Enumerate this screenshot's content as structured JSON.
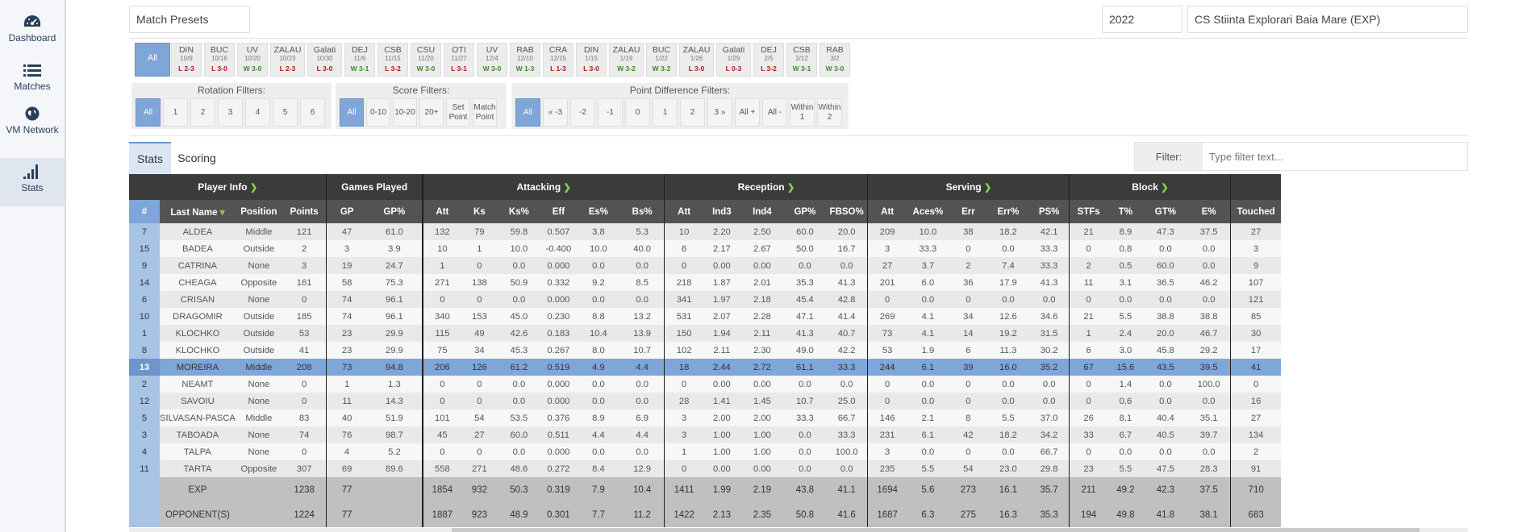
{
  "sidebar": {
    "items": [
      {
        "label": "Dashboard",
        "icon": "dashboard-icon"
      },
      {
        "label": "Matches",
        "icon": "list-icon"
      },
      {
        "label": "VM Network",
        "icon": "globe-icon"
      },
      {
        "label": "Stats",
        "icon": "signal-bars-icon"
      }
    ]
  },
  "top": {
    "presets": "Match Presets",
    "season": "2022",
    "team": "CS Stiinta Explorari Baia Mare (EXP)"
  },
  "matches": {
    "all_label": "All",
    "items": [
      {
        "opp": "DIN",
        "date": "10/9",
        "res": "L 2-3",
        "w": false
      },
      {
        "opp": "BUC",
        "date": "10/16",
        "res": "L 3-0",
        "w": false
      },
      {
        "opp": "UV",
        "date": "10/20",
        "res": "W 3-0",
        "w": true
      },
      {
        "opp": "ZALAU",
        "date": "10/23",
        "res": "L 2-3",
        "w": false
      },
      {
        "opp": "Galati",
        "date": "10/30",
        "res": "L 3-0",
        "w": false
      },
      {
        "opp": "DEJ",
        "date": "11/6",
        "res": "W 3-1",
        "w": true
      },
      {
        "opp": "CSB",
        "date": "11/15",
        "res": "L 3-2",
        "w": false
      },
      {
        "opp": "CSU",
        "date": "11/20",
        "res": "W 3-0",
        "w": true
      },
      {
        "opp": "OTI",
        "date": "11/27",
        "res": "L 3-1",
        "w": false
      },
      {
        "opp": "UV",
        "date": "12/4",
        "res": "W 3-0",
        "w": true
      },
      {
        "opp": "RAB",
        "date": "12/10",
        "res": "W 1-3",
        "w": true
      },
      {
        "opp": "CRA",
        "date": "12/15",
        "res": "L 1-3",
        "w": false
      },
      {
        "opp": "DIN",
        "date": "1/15",
        "res": "L 3-0",
        "w": false
      },
      {
        "opp": "ZALAU",
        "date": "1/19",
        "res": "W 3-2",
        "w": true
      },
      {
        "opp": "BUC",
        "date": "1/22",
        "res": "W 3-2",
        "w": true
      },
      {
        "opp": "ZALAU",
        "date": "1/26",
        "res": "L 3-0",
        "w": false
      },
      {
        "opp": "Galati",
        "date": "1/29",
        "res": "L 0-3",
        "w": false
      },
      {
        "opp": "DEJ",
        "date": "2/5",
        "res": "L 3-2",
        "w": false
      },
      {
        "opp": "CSB",
        "date": "2/12",
        "res": "W 3-1",
        "w": true
      },
      {
        "opp": "RAB",
        "date": "3/2",
        "res": "W 3-0",
        "w": true
      }
    ]
  },
  "filters": {
    "rotation": {
      "title": "Rotation Filters:",
      "buttons": [
        "All",
        "1",
        "2",
        "3",
        "4",
        "5",
        "6"
      ]
    },
    "score": {
      "title": "Score Filters:",
      "buttons": [
        "All",
        "0-10",
        "10-20",
        "20+",
        "Set Point",
        "Match Point"
      ]
    },
    "pointdiff": {
      "title": "Point Difference Filters:",
      "buttons": [
        "All",
        "« -3",
        "-2",
        "-1",
        "0",
        "1",
        "2",
        "3 »",
        "All +",
        "All -",
        "Within 1",
        "Within 2"
      ]
    }
  },
  "tabs": {
    "stats": "Stats",
    "scoring": "Scoring"
  },
  "filter": {
    "label": "Filter:",
    "placeholder": "Type filter text..."
  },
  "table": {
    "groups": {
      "player_info": "Player Info",
      "games_played": "Games Played",
      "attacking": "Attacking",
      "reception": "Reception",
      "serving": "Serving",
      "block": "Block"
    },
    "columns": [
      "#",
      "Last Name",
      "Position",
      "Points",
      "GP",
      "GP%",
      "Att",
      "Ks",
      "Ks%",
      "Eff",
      "Es%",
      "Bs%",
      "Att",
      "Ind3",
      "Ind4",
      "GP%",
      "FBSO%",
      "Att",
      "Aces%",
      "Err",
      "Err%",
      "PS%",
      "STFs",
      "T%",
      "GT%",
      "E%",
      "Touched"
    ],
    "rows": [
      [
        "7",
        "ALDEA",
        "Middle",
        "121",
        "47",
        "61.0",
        "132",
        "79",
        "59.8",
        "0.507",
        "3.8",
        "5.3",
        "10",
        "2.20",
        "2.50",
        "60.0",
        "20.0",
        "209",
        "10.0",
        "38",
        "18.2",
        "42.1",
        "21",
        "8.9",
        "47.3",
        "37.5",
        "27"
      ],
      [
        "15",
        "BADEA",
        "Outside",
        "2",
        "3",
        "3.9",
        "10",
        "1",
        "10.0",
        "-0.400",
        "10.0",
        "40.0",
        "6",
        "2.17",
        "2.67",
        "50.0",
        "16.7",
        "3",
        "33.3",
        "0",
        "0.0",
        "33.3",
        "0",
        "0.8",
        "0.0",
        "0.0",
        "3"
      ],
      [
        "9",
        "CATRINA",
        "None",
        "3",
        "19",
        "24.7",
        "1",
        "0",
        "0.0",
        "0.000",
        "0.0",
        "0.0",
        "0",
        "0.00",
        "0.00",
        "0.0",
        "0.0",
        "27",
        "3.7",
        "2",
        "7.4",
        "33.3",
        "2",
        "0.5",
        "60.0",
        "0.0",
        "9"
      ],
      [
        "14",
        "CHEAGA",
        "Opposite",
        "161",
        "58",
        "75.3",
        "271",
        "138",
        "50.9",
        "0.332",
        "9.2",
        "8.5",
        "218",
        "1.87",
        "2.01",
        "35.3",
        "41.3",
        "201",
        "6.0",
        "36",
        "17.9",
        "41.3",
        "11",
        "3.1",
        "36.5",
        "46.2",
        "107"
      ],
      [
        "6",
        "CRISAN",
        "None",
        "0",
        "74",
        "96.1",
        "0",
        "0",
        "0.0",
        "0.000",
        "0.0",
        "0.0",
        "341",
        "1.97",
        "2.18",
        "45.4",
        "42.8",
        "0",
        "0.0",
        "0",
        "0.0",
        "0.0",
        "0",
        "0.0",
        "0.0",
        "0.0",
        "121"
      ],
      [
        "10",
        "DRAGOMIR",
        "Outside",
        "185",
        "74",
        "96.1",
        "340",
        "153",
        "45.0",
        "0.230",
        "8.8",
        "13.2",
        "531",
        "2.07",
        "2.28",
        "47.1",
        "41.4",
        "269",
        "4.1",
        "34",
        "12.6",
        "34.6",
        "21",
        "5.5",
        "38.8",
        "38.8",
        "85"
      ],
      [
        "1",
        "KLOCHKO",
        "Outside",
        "53",
        "23",
        "29.9",
        "115",
        "49",
        "42.6",
        "0.183",
        "10.4",
        "13.9",
        "150",
        "1.94",
        "2.11",
        "41.3",
        "40.7",
        "73",
        "4.1",
        "14",
        "19.2",
        "31.5",
        "1",
        "2.4",
        "20.0",
        "46.7",
        "30"
      ],
      [
        "8",
        "KLOCHKO",
        "Outside",
        "41",
        "23",
        "29.9",
        "75",
        "34",
        "45.3",
        "0.267",
        "8.0",
        "10.7",
        "102",
        "2.11",
        "2.30",
        "49.0",
        "42.2",
        "53",
        "1.9",
        "6",
        "11.3",
        "30.2",
        "6",
        "3.0",
        "45.8",
        "29.2",
        "17"
      ],
      [
        "13",
        "MOREIRA",
        "Middle",
        "208",
        "73",
        "94.8",
        "206",
        "126",
        "61.2",
        "0.519",
        "4.9",
        "4.4",
        "18",
        "2.44",
        "2.72",
        "61.1",
        "33.3",
        "244",
        "6.1",
        "39",
        "16.0",
        "35.2",
        "67",
        "15.6",
        "43.5",
        "39.5",
        "41"
      ],
      [
        "2",
        "NEAMT",
        "None",
        "0",
        "1",
        "1.3",
        "0",
        "0",
        "0.0",
        "0.000",
        "0.0",
        "0.0",
        "0",
        "0.00",
        "0.00",
        "0.0",
        "0.0",
        "0",
        "0.0",
        "0",
        "0.0",
        "0.0",
        "0",
        "1.4",
        "0.0",
        "100.0",
        "0"
      ],
      [
        "12",
        "SAVOIU",
        "None",
        "0",
        "11",
        "14.3",
        "0",
        "0",
        "0.0",
        "0.000",
        "0.0",
        "0.0",
        "28",
        "1.41",
        "1.45",
        "10.7",
        "25.0",
        "0",
        "0.0",
        "0",
        "0.0",
        "0.0",
        "0",
        "0.6",
        "0.0",
        "0.0",
        "16"
      ],
      [
        "5",
        "SILVASAN-PASCA",
        "Middle",
        "83",
        "40",
        "51.9",
        "101",
        "54",
        "53.5",
        "0.376",
        "8.9",
        "6.9",
        "3",
        "2.00",
        "2.00",
        "33.3",
        "66.7",
        "146",
        "2.1",
        "8",
        "5.5",
        "37.0",
        "26",
        "8.1",
        "40.4",
        "35.1",
        "27"
      ],
      [
        "3",
        "TABOADA",
        "None",
        "74",
        "76",
        "98.7",
        "45",
        "27",
        "60.0",
        "0.511",
        "4.4",
        "4.4",
        "3",
        "1.00",
        "1.00",
        "0.0",
        "33.3",
        "231",
        "6.1",
        "42",
        "18.2",
        "34.2",
        "33",
        "6.7",
        "40.5",
        "39.7",
        "134"
      ],
      [
        "4",
        "TALPA",
        "None",
        "0",
        "4",
        "5.2",
        "0",
        "0",
        "0.0",
        "0.000",
        "0.0",
        "0.0",
        "1",
        "1.00",
        "1.00",
        "0.0",
        "100.0",
        "3",
        "0.0",
        "0",
        "0.0",
        "66.7",
        "0",
        "0.0",
        "0.0",
        "0.0",
        "2"
      ],
      [
        "11",
        "TARTA",
        "Opposite",
        "307",
        "69",
        "89.6",
        "558",
        "271",
        "48.6",
        "0.272",
        "8.4",
        "12.9",
        "0",
        "0.00",
        "0.00",
        "0.0",
        "0.0",
        "235",
        "5.5",
        "54",
        "23.0",
        "29.8",
        "23",
        "5.5",
        "47.5",
        "28.3",
        "91"
      ]
    ],
    "highlight_row": 8,
    "totals": [
      [
        "",
        "EXP",
        "",
        "1238",
        "77",
        "",
        "1854",
        "932",
        "50.3",
        "0.319",
        "7.9",
        "10.4",
        "1411",
        "1.99",
        "2.19",
        "43.8",
        "41.1",
        "1694",
        "5.6",
        "273",
        "16.1",
        "35.7",
        "211",
        "49.2",
        "42.3",
        "37.5",
        "710"
      ],
      [
        "",
        "OPPONENT(S)",
        "",
        "1224",
        "77",
        "",
        "1887",
        "923",
        "48.9",
        "0.301",
        "7.7",
        "11.2",
        "1422",
        "2.13",
        "2.35",
        "50.8",
        "41.6",
        "1687",
        "6.3",
        "275",
        "16.3",
        "35.3",
        "194",
        "49.8",
        "41.8",
        "38.1",
        "683"
      ]
    ]
  },
  "colors": {
    "accent": "#7fa6d8",
    "header_dark": "#3b3b3b",
    "header_mid": "#535353",
    "arrow": "#8fd14a",
    "win": "#3a8a2a",
    "loss": "#b01818"
  }
}
